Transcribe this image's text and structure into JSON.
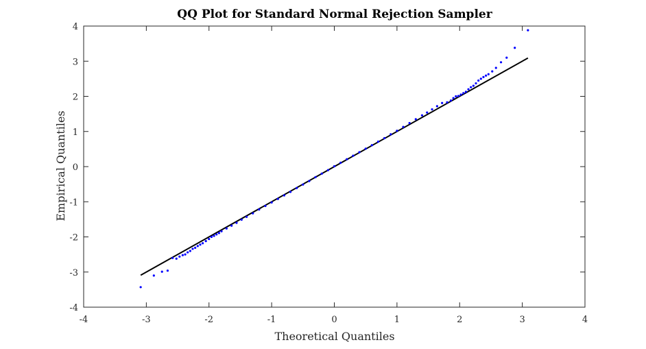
{
  "chart_data": {
    "type": "scatter",
    "title": "QQ Plot for Standard Normal Rejection Sampler",
    "xlabel": "Theoretical Quantiles",
    "ylabel": "Empirical Quantiles",
    "xlim": [
      -4,
      4
    ],
    "ylim": [
      -4,
      4
    ],
    "xticks": [
      -4,
      -3,
      -2,
      -1,
      0,
      1,
      2,
      3,
      4
    ],
    "yticks": [
      -4,
      -3,
      -2,
      -1,
      0,
      1,
      2,
      3,
      4
    ],
    "xtick_labels": [
      "-4",
      "-3",
      "-2",
      "-1",
      "0",
      "1",
      "2",
      "3",
      "4"
    ],
    "ytick_labels": [
      "-4",
      "-3",
      "-2",
      "-1",
      "0",
      "1",
      "2",
      "3",
      "4"
    ],
    "grid": false,
    "series": [
      {
        "color": "#0000ff",
        "marker": "dot",
        "x": [
          -3.09,
          -2.88,
          -2.75,
          -2.66,
          -2.58,
          -2.52,
          -2.47,
          -2.42,
          -2.38,
          -2.34,
          -2.3,
          -2.26,
          -2.22,
          -2.18,
          -2.14,
          -2.1,
          -2.05,
          -2.0,
          -1.96,
          -1.92,
          -1.88,
          -1.84,
          -1.8,
          -1.72,
          -1.64,
          -1.56,
          -1.48,
          -1.4,
          -1.3,
          -1.2,
          -1.1,
          -1.0,
          -0.9,
          -0.8,
          -0.7,
          -0.6,
          -0.5,
          -0.4,
          -0.3,
          -0.2,
          -0.1,
          0.0,
          0.1,
          0.2,
          0.3,
          0.4,
          0.5,
          0.6,
          0.7,
          0.8,
          0.9,
          1.0,
          1.1,
          1.2,
          1.3,
          1.4,
          1.48,
          1.56,
          1.64,
          1.72,
          1.8,
          1.86,
          1.9,
          1.94,
          1.98,
          2.02,
          2.06,
          2.1,
          2.14,
          2.18,
          2.22,
          2.26,
          2.3,
          2.34,
          2.38,
          2.42,
          2.46,
          2.52,
          2.58,
          2.66,
          2.75,
          2.88,
          3.09
        ],
        "y": [
          -3.43,
          -3.1,
          -2.99,
          -2.96,
          -2.6,
          -2.62,
          -2.56,
          -2.52,
          -2.5,
          -2.44,
          -2.4,
          -2.34,
          -2.31,
          -2.26,
          -2.22,
          -2.18,
          -2.12,
          -2.06,
          -2.0,
          -1.97,
          -1.93,
          -1.89,
          -1.84,
          -1.76,
          -1.68,
          -1.6,
          -1.51,
          -1.43,
          -1.33,
          -1.22,
          -1.12,
          -1.02,
          -0.92,
          -0.82,
          -0.72,
          -0.61,
          -0.51,
          -0.41,
          -0.3,
          -0.2,
          -0.1,
          0.01,
          0.11,
          0.21,
          0.31,
          0.41,
          0.51,
          0.61,
          0.71,
          0.81,
          0.92,
          1.02,
          1.13,
          1.24,
          1.35,
          1.46,
          1.54,
          1.63,
          1.72,
          1.81,
          1.83,
          1.88,
          1.95,
          2.0,
          2.01,
          2.05,
          2.09,
          2.13,
          2.2,
          2.26,
          2.3,
          2.37,
          2.45,
          2.5,
          2.55,
          2.59,
          2.63,
          2.71,
          2.81,
          2.97,
          3.1,
          3.38,
          3.88
        ]
      },
      {
        "type": "line",
        "color": "#000000",
        "x": [
          -3.09,
          3.09
        ],
        "y": [
          -3.09,
          3.09
        ]
      }
    ]
  }
}
